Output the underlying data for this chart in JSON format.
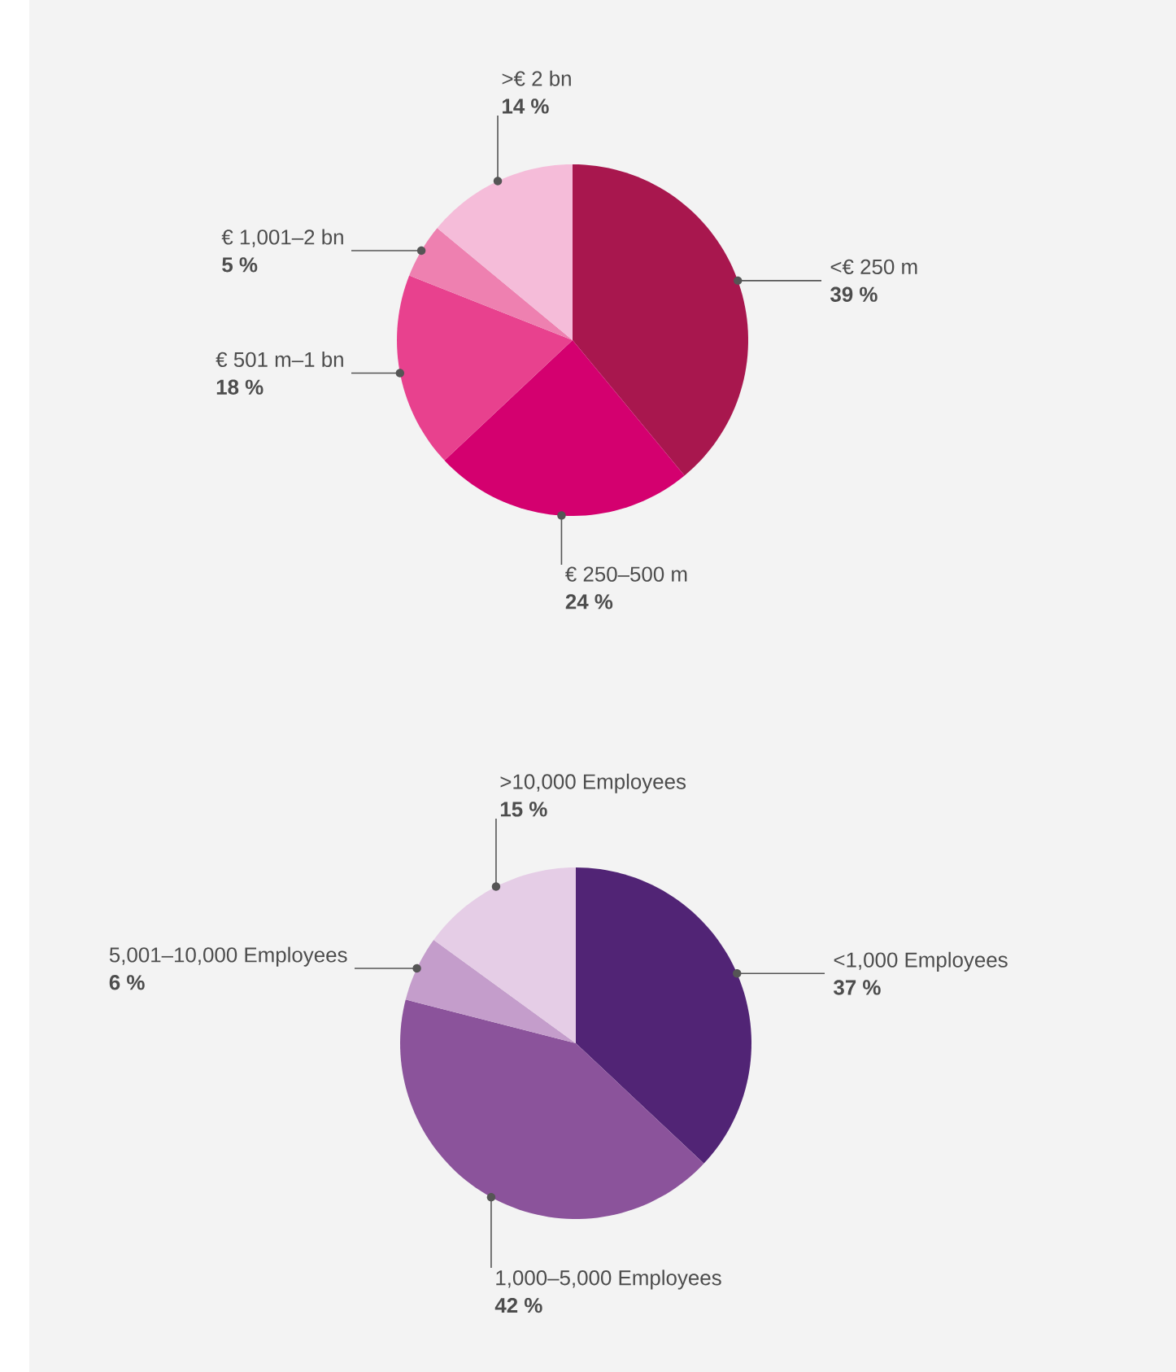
{
  "chart_data": [
    {
      "type": "pie",
      "categories": [
        "<€ 250 m",
        "€ 250–500 m",
        "€ 501 m–1 bn",
        "€ 1,001–2 bn",
        ">€ 2 bn"
      ],
      "values": [
        39,
        24,
        18,
        5,
        14
      ],
      "value_labels": [
        "39 %",
        "24 %",
        "18 %",
        "5 %",
        "14 %"
      ],
      "colors": [
        "#a8174e",
        "#d4006f",
        "#e8418e",
        "#ee80b0",
        "#f5bcd9"
      ]
    },
    {
      "type": "pie",
      "categories": [
        "<1,000 Employees",
        "1,000–5,000 Employees",
        "5,001–10,000 Employees",
        ">10,000 Employees"
      ],
      "values": [
        37,
        42,
        6,
        15
      ],
      "value_labels": [
        "37 %",
        "42 %",
        "6 %",
        "15 %"
      ],
      "colors": [
        "#512475",
        "#8b539b",
        "#c49dcb",
        "#e5cde6"
      ]
    }
  ]
}
